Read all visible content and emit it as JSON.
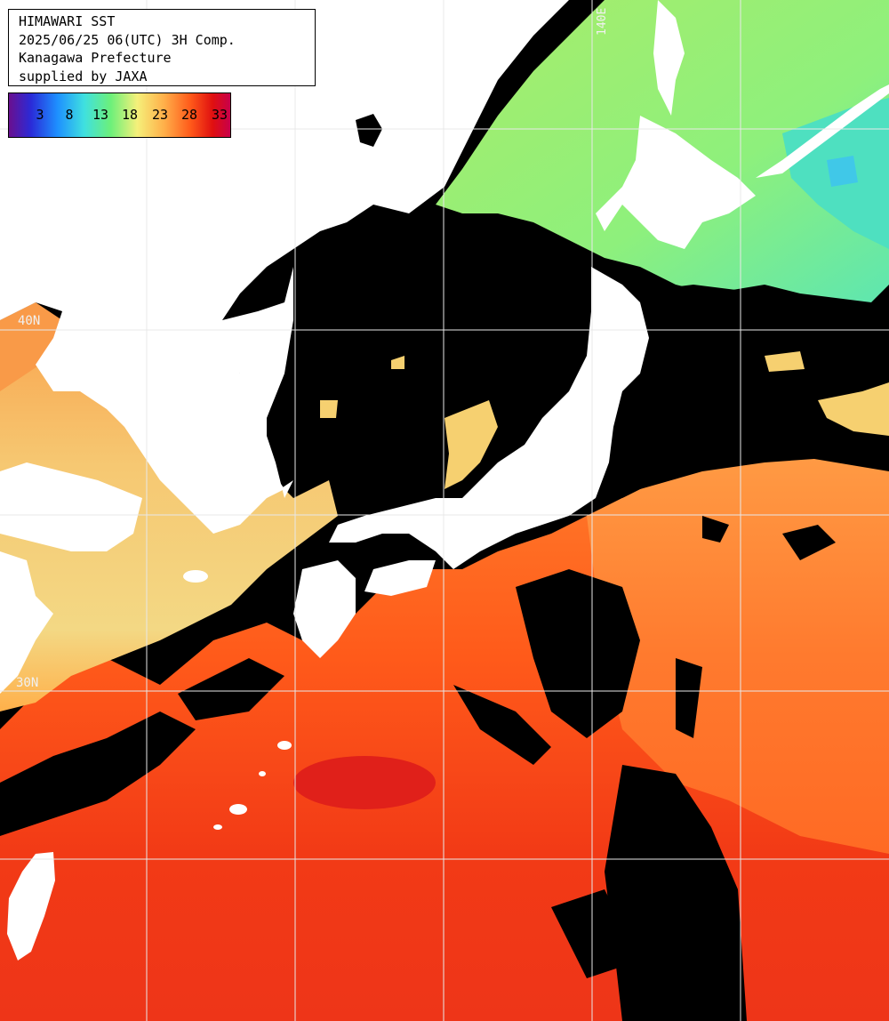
{
  "header": {
    "lines": [
      "HIMAWARI SST",
      "2025/06/25 06(UTC) 3H Comp.",
      "Kanagawa Prefecture",
      "supplied by JAXA"
    ]
  },
  "legend": {
    "labels": [
      "3",
      "8",
      "13",
      "18",
      "23",
      "28",
      "33"
    ],
    "gradient_colors": [
      "#6a0f8f",
      "#2a2bd8",
      "#1e90ff",
      "#3fe0e0",
      "#6cf07a",
      "#f5f07a",
      "#ffb04a",
      "#ff5a1a",
      "#e01010",
      "#c8004a"
    ]
  },
  "grid": {
    "label_140e": "140E",
    "label_40n": "40N",
    "label_30n": "30N",
    "line_color": "#e8e8e8"
  },
  "colors": {
    "land": "#ffffff",
    "cloud_mask": "#000000",
    "warm_sea": "#ff4a14",
    "hot_sea": "#f0301a",
    "mid_sea": "#ff8a3a",
    "yellow_sea": "#f6d77a",
    "cool_sea": "#9af07a",
    "cold_sea": "#50e6b4"
  }
}
